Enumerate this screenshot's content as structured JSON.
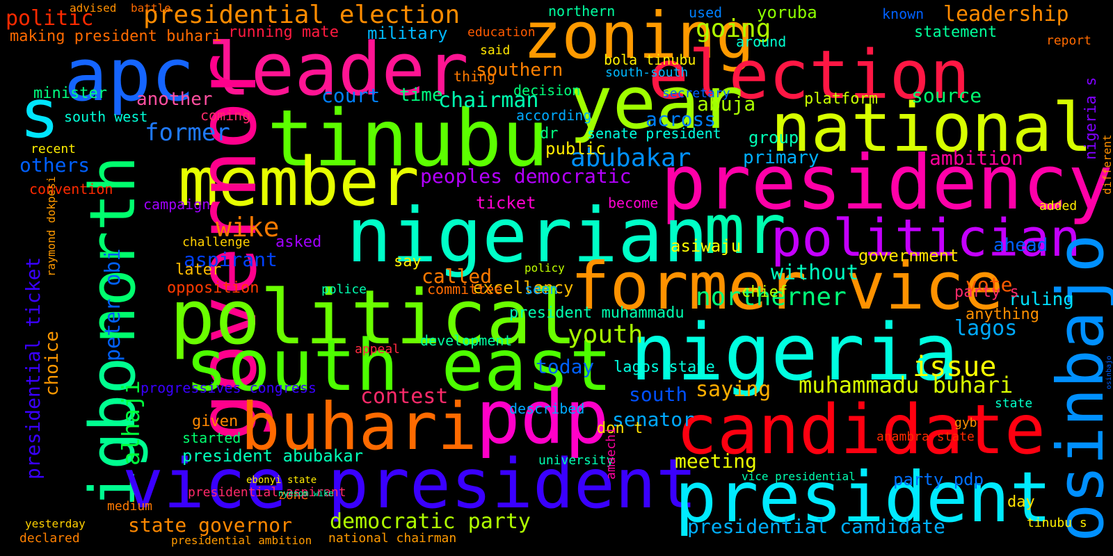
{
  "canvas": {
    "background": "#000000"
  },
  "words": [
    {
      "text": "zoning",
      "color": "#ff9a00"
    },
    {
      "text": "election",
      "color": "#ff1744"
    },
    {
      "text": "apc",
      "color": "#1565ff"
    },
    {
      "text": "leader",
      "color": "#ff1493"
    },
    {
      "text": "year",
      "color": "#a0ff00"
    },
    {
      "text": "tinubu",
      "color": "#5cff00"
    },
    {
      "text": "national",
      "color": "#d7ff00"
    },
    {
      "text": "s",
      "color": "#00e5ff"
    },
    {
      "text": "member",
      "color": "#e6ff00"
    },
    {
      "text": "presidency",
      "color": "#ff00a8"
    },
    {
      "text": "nigerian",
      "color": "#00ffc8"
    },
    {
      "text": "mr",
      "color": "#00ffb0"
    },
    {
      "text": "politician",
      "color": "#c400ff"
    },
    {
      "text": "governor",
      "color": "#ff008c"
    },
    {
      "text": "igbo",
      "color": "#00ff90"
    },
    {
      "text": "north",
      "color": "#00ff6e"
    },
    {
      "text": "former vice",
      "color": "#ff9200"
    },
    {
      "text": "political",
      "color": "#6aff00"
    },
    {
      "text": "nigeria",
      "color": "#00ffe0"
    },
    {
      "text": "osinbajo",
      "color": "#0090ff"
    },
    {
      "text": "south east",
      "color": "#4dff00"
    },
    {
      "text": "buhari",
      "color": "#ff6a00"
    },
    {
      "text": "pdp",
      "color": "#ff00c8"
    },
    {
      "text": "candidate",
      "color": "#ff0010"
    },
    {
      "text": "vice president",
      "color": "#3a00ff"
    },
    {
      "text": "president",
      "color": "#00eaff"
    },
    {
      "text": "presidential election",
      "color": "#ff8c00"
    },
    {
      "text": "leadership",
      "color": "#ff8a00"
    },
    {
      "text": "politic",
      "color": "#ff2a00"
    },
    {
      "text": "running mate",
      "color": "#ff1a40"
    },
    {
      "text": "military",
      "color": "#00b8ff"
    },
    {
      "text": "going",
      "color": "#b0ff00"
    },
    {
      "text": "yoruba",
      "color": "#8cff00"
    },
    {
      "text": "statement",
      "color": "#00ff9a"
    },
    {
      "text": "making president buhari",
      "color": "#ff6a00"
    },
    {
      "text": "former",
      "color": "#1f7aff"
    },
    {
      "text": "abubakar",
      "color": "#0090ff"
    },
    {
      "text": "chairman",
      "color": "#00ffb0"
    },
    {
      "text": "court",
      "color": "#0080ff"
    },
    {
      "text": "time",
      "color": "#00ff80"
    },
    {
      "text": "another",
      "color": "#ff4fa0"
    },
    {
      "text": "southern",
      "color": "#ff8000"
    },
    {
      "text": "abuja",
      "color": "#aaff00"
    },
    {
      "text": "source",
      "color": "#00ff70"
    },
    {
      "text": "platform",
      "color": "#c8ff00"
    },
    {
      "text": "primary",
      "color": "#00b0ff"
    },
    {
      "text": "ambition",
      "color": "#ff009a"
    },
    {
      "text": "peoples democratic",
      "color": "#b400ff"
    },
    {
      "text": "wike",
      "color": "#ff7a00"
    },
    {
      "text": "aspirant",
      "color": "#0040ff"
    },
    {
      "text": "ticket",
      "color": "#ff00d0"
    },
    {
      "text": "vote",
      "color": "#ff5a00"
    },
    {
      "text": "ruling",
      "color": "#00e0ff"
    },
    {
      "text": "northerner",
      "color": "#00ff7a"
    },
    {
      "text": "lagos",
      "color": "#00aaff"
    },
    {
      "text": "issue",
      "color": "#faff00"
    },
    {
      "text": "youth",
      "color": "#a8ff00"
    },
    {
      "text": "today",
      "color": "#0060ff"
    },
    {
      "text": "muhammadu buhari",
      "color": "#d8ff00"
    },
    {
      "text": "contest",
      "color": "#ff2a6a"
    },
    {
      "text": "saying",
      "color": "#ffae00"
    },
    {
      "text": "south",
      "color": "#0050ff"
    },
    {
      "text": "senator",
      "color": "#00a8ff"
    },
    {
      "text": "meeting",
      "color": "#ecff00"
    },
    {
      "text": "state governor",
      "color": "#ff8800"
    },
    {
      "text": "democratic party",
      "color": "#b0ff00"
    },
    {
      "text": "presidential candidate",
      "color": "#00b0ff"
    },
    {
      "text": "president abubakar",
      "color": "#00ffb8"
    },
    {
      "text": "party pdp",
      "color": "#0070ff"
    },
    {
      "text": "without",
      "color": "#00ffc0"
    },
    {
      "text": "government",
      "color": "#ffe000"
    },
    {
      "text": "called",
      "color": "#ff7a00"
    },
    {
      "text": "excellency",
      "color": "#ffbb00"
    },
    {
      "text": "asiwaju",
      "color": "#ffff00"
    },
    {
      "text": "alhaji",
      "color": "#00ff3c"
    },
    {
      "text": "peter obi",
      "color": "#0060ff"
    },
    {
      "text": "presidential ticket",
      "color": "#3a00ff"
    },
    {
      "text": "choice",
      "color": "#ff9800"
    },
    {
      "text": "others",
      "color": "#0060ff"
    },
    {
      "text": "public",
      "color": "#ffea00"
    },
    {
      "text": "across",
      "color": "#0080ff"
    },
    {
      "text": "group",
      "color": "#00ffb4"
    },
    {
      "text": "minister",
      "color": "#00ff80"
    },
    {
      "text": "south west",
      "color": "#00ffd8"
    },
    {
      "text": "campaign",
      "color": "#a000ff"
    },
    {
      "text": "convention",
      "color": "#ff2a00"
    },
    {
      "text": "chief",
      "color": "#c0ff00"
    },
    {
      "text": "party s",
      "color": "#ff2a6a"
    },
    {
      "text": "anything",
      "color": "#ff9000"
    },
    {
      "text": "ahead",
      "color": "#0060ff"
    },
    {
      "text": "added",
      "color": "#ffee00"
    },
    {
      "text": "dr",
      "color": "#00ff80"
    },
    {
      "text": "secretary",
      "color": "#0060ff"
    },
    {
      "text": "senate president",
      "color": "#00ffe0"
    },
    {
      "text": "according",
      "color": "#00aaff"
    },
    {
      "text": "decision",
      "color": "#00ff7a"
    },
    {
      "text": "nigeria s",
      "color": "#8000ff"
    },
    {
      "text": "different",
      "color": "#ff9000"
    },
    {
      "text": "report",
      "color": "#ff6a00"
    },
    {
      "text": "bola tinubu",
      "color": "#ffee00"
    },
    {
      "text": "south-south",
      "color": "#00b8ff"
    },
    {
      "text": "education",
      "color": "#ff5a00"
    },
    {
      "text": "northern",
      "color": "#00ffa0"
    },
    {
      "text": "used",
      "color": "#0080ff"
    },
    {
      "text": "known",
      "color": "#0060ff"
    },
    {
      "text": "said",
      "color": "#ffe600"
    },
    {
      "text": "thing",
      "color": "#ff7a00"
    },
    {
      "text": "around",
      "color": "#00ffd0"
    },
    {
      "text": "become",
      "color": "#ff00d0"
    },
    {
      "text": "asked",
      "color": "#a000ff"
    },
    {
      "text": "later",
      "color": "#ffbb00"
    },
    {
      "text": "opposition",
      "color": "#ff3a00"
    },
    {
      "text": "challenge",
      "color": "#ffd000"
    },
    {
      "text": "say",
      "color": "#ffee00"
    },
    {
      "text": "committee",
      "color": "#ff6a00"
    },
    {
      "text": "president muhammadu",
      "color": "#00ffb0"
    },
    {
      "text": "development",
      "color": "#00ffa0"
    },
    {
      "text": "seen",
      "color": "#00aaff"
    },
    {
      "text": "given",
      "color": "#ff8800"
    },
    {
      "text": "started",
      "color": "#00ff6e"
    },
    {
      "text": "lagos state",
      "color": "#00ffe0"
    },
    {
      "text": "progressives congress",
      "color": "#3a00ff"
    },
    {
      "text": "described",
      "color": "#00aaff"
    },
    {
      "text": "university",
      "color": "#00ffb0"
    },
    {
      "text": "don t",
      "color": "#ffe000"
    },
    {
      "text": "state",
      "color": "#00ffc8"
    },
    {
      "text": "day",
      "color": "#ffe000"
    },
    {
      "text": "zone",
      "color": "#ff6a00"
    },
    {
      "text": "medium",
      "color": "#ff7a00"
    },
    {
      "text": "declared",
      "color": "#ff8000"
    },
    {
      "text": "national chairman",
      "color": "#ff9a00"
    },
    {
      "text": "presidential aspirant",
      "color": "#ff2a6a"
    },
    {
      "text": "presidential ambition",
      "color": "#ff9a00"
    },
    {
      "text": "amaechi",
      "color": "#ff00a0"
    },
    {
      "text": "anambra state",
      "color": "#ff2a00"
    },
    {
      "text": "vice presidential",
      "color": "#00ffb0"
    },
    {
      "text": "advised",
      "color": "#ff9000"
    },
    {
      "text": "battle",
      "color": "#ff6a00"
    },
    {
      "text": "policy",
      "color": "#c0ff00"
    },
    {
      "text": "raymond dokpesi",
      "color": "#ff9a00"
    },
    {
      "text": "coming",
      "color": "#ff2a6a"
    },
    {
      "text": "recent",
      "color": "#ffee00"
    },
    {
      "text": "appeal",
      "color": "#ff2a40"
    },
    {
      "text": "police",
      "color": "#00ffb0"
    },
    {
      "text": "yesterday",
      "color": "#ffd000"
    },
    {
      "text": "nyesom wike",
      "color": "#00ffb0"
    },
    {
      "text": "tinubu s",
      "color": "#ffee00"
    },
    {
      "text": "ebonyi state",
      "color": "#ffea00"
    },
    {
      "text": "osinbajo",
      "color": "#0060ff"
    },
    {
      "text": "gyb",
      "color": "#ff9000"
    }
  ]
}
